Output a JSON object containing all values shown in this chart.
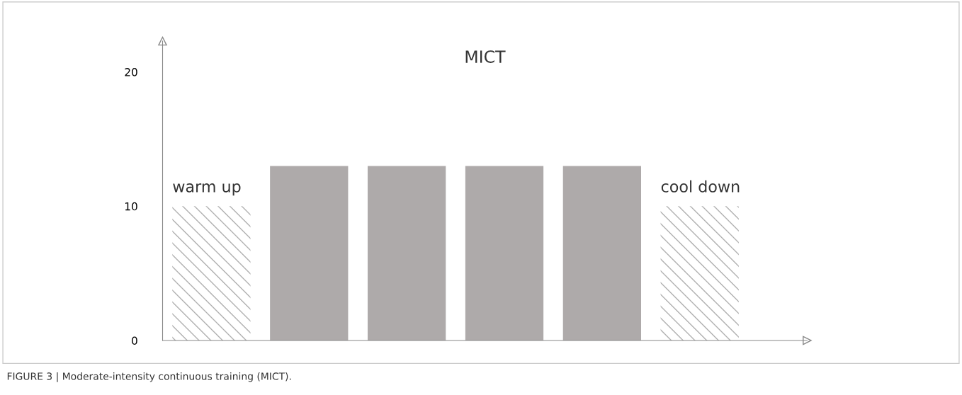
{
  "chart_data": {
    "type": "bar",
    "title": "MICT",
    "categories": [
      null,
      null,
      null,
      null,
      null,
      null
    ],
    "values": [
      10,
      13,
      13,
      13,
      13,
      10
    ],
    "colors": [
      "#b0b0b0",
      "#aeaaaa",
      "#aeaaaa",
      "#aeaaaa",
      "#aeaaaa",
      "#b0b0b0"
    ],
    "ylim": [
      0,
      22.3
    ],
    "yticks": [
      0,
      10,
      20
    ],
    "tick_labels": "y",
    "annotations": [
      "warm up",
      "cool down",
      "FIGURE 3 | Moderate-intensity continuous training (MICT)."
    ]
  }
}
